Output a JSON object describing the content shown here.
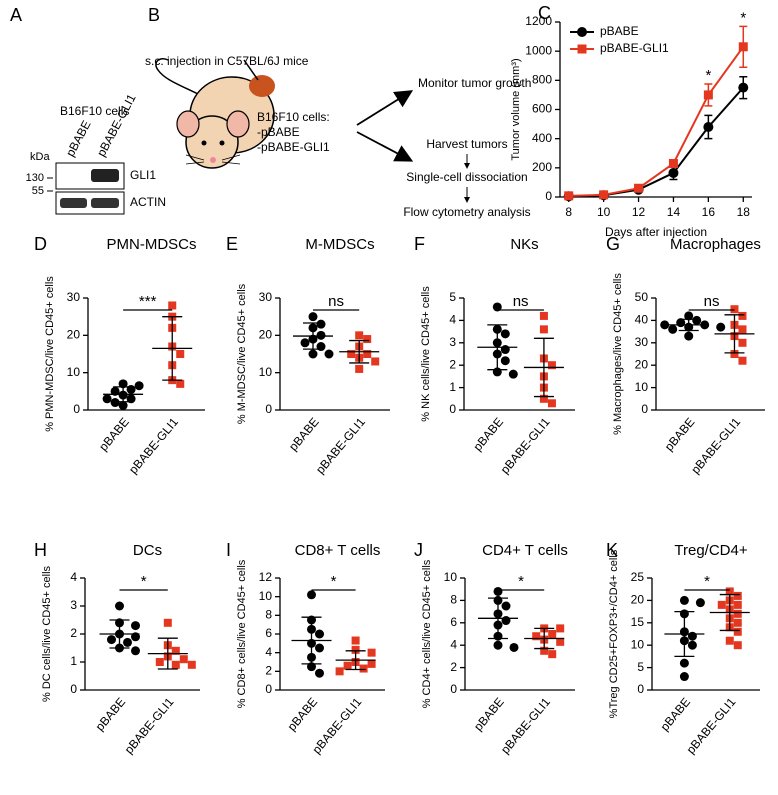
{
  "panel_a": {
    "letter": "A",
    "title": "B16F10 cells",
    "lanes": [
      "pBABE",
      "pBABE-GLI1"
    ],
    "unit": "kDa",
    "markers": [
      "130",
      "55"
    ],
    "bands": [
      "GLI1",
      "ACTIN"
    ]
  },
  "panel_b": {
    "letter": "B",
    "title": "s.c. injection in C57BL/6J mice",
    "cells": "B16F10 cells:",
    "lines": [
      "-pBABE",
      "-pBABE-GLI1"
    ],
    "steps": [
      "Monitor tumor growth",
      "Harvest tumors",
      "Single-cell dissociation",
      "Flow cytometry analysis"
    ]
  },
  "chart_data": [
    {
      "type": "line",
      "panel": "C",
      "xlabel": "Days after injection",
      "ylabel": "Tumor volume (mm³)",
      "x": [
        8,
        10,
        12,
        14,
        16,
        18
      ],
      "xlim": [
        7.5,
        18.5
      ],
      "xticks": [
        8,
        10,
        12,
        14,
        16,
        18
      ],
      "ylim": [
        0,
        1200
      ],
      "yticks": [
        0,
        200,
        400,
        600,
        800,
        1000,
        1200
      ],
      "legend": "upper left",
      "series": [
        {
          "name": "pBABE",
          "color": "#000000",
          "marker": "circle",
          "values": [
            5,
            12,
            50,
            165,
            480,
            750
          ],
          "errors": [
            5,
            5,
            10,
            45,
            80,
            75
          ]
        },
        {
          "name": "pBABE-GLI1",
          "color": "#e4371f",
          "marker": "square",
          "values": [
            8,
            15,
            60,
            230,
            700,
            1030
          ],
          "errors": [
            5,
            5,
            12,
            25,
            75,
            140
          ]
        }
      ],
      "annotations": [
        {
          "x": 16,
          "text": "*"
        },
        {
          "x": 18,
          "text": "*"
        }
      ]
    },
    {
      "type": "dot",
      "panel": "D",
      "title": "PMN-MDSCs",
      "ylabel": "% PMN-MDSC/live CD45+ cells",
      "ylim": [
        0,
        30
      ],
      "yticks": [
        0,
        10,
        20,
        30
      ],
      "significance": "***",
      "groups": [
        {
          "name": "pBABE",
          "color": "#000000",
          "marker": "circle",
          "values": [
            7,
            6.5,
            5.5,
            5,
            4,
            3,
            3,
            2,
            1.2
          ],
          "mean": 4.2,
          "sd": 2.0
        },
        {
          "name": "pBABE-GLI1",
          "color": "#e4371f",
          "marker": "square",
          "values": [
            28,
            25,
            22,
            17,
            15,
            12,
            8,
            7
          ],
          "mean": 16.5,
          "sd": 8.5
        }
      ]
    },
    {
      "type": "dot",
      "panel": "E",
      "title": "M-MDSCs",
      "ylabel": "% M-MDSC/live CD45+ cells",
      "ylim": [
        0,
        30
      ],
      "yticks": [
        0,
        10,
        20,
        30
      ],
      "significance": "ns",
      "groups": [
        {
          "name": "pBABE",
          "color": "#000000",
          "marker": "circle",
          "values": [
            25,
            23,
            22,
            20,
            19,
            18,
            17,
            15,
            15
          ],
          "mean": 19.8,
          "sd": 3.5
        },
        {
          "name": "pBABE-GLI1",
          "color": "#e4371f",
          "marker": "square",
          "values": [
            20,
            19,
            17,
            15,
            15,
            14,
            13,
            11
          ],
          "mean": 15.6,
          "sd": 3.0
        }
      ]
    },
    {
      "type": "dot",
      "panel": "F",
      "title": "NKs",
      "ylabel": "% NK cells/live CD45+ cells",
      "ylim": [
        0,
        5
      ],
      "yticks": [
        0,
        1,
        2,
        3,
        4,
        5
      ],
      "significance": "ns",
      "groups": [
        {
          "name": "pBABE",
          "color": "#000000",
          "marker": "circle",
          "values": [
            4.6,
            3.6,
            3.4,
            3.0,
            2.7,
            2.5,
            2.2,
            1.7,
            1.6
          ],
          "mean": 2.8,
          "sd": 1.0
        },
        {
          "name": "pBABE-GLI1",
          "color": "#e4371f",
          "marker": "square",
          "values": [
            4.2,
            3.6,
            2.3,
            2.0,
            1.5,
            1.0,
            0.5,
            0.3
          ],
          "mean": 1.9,
          "sd": 1.3
        }
      ]
    },
    {
      "type": "dot",
      "panel": "G",
      "title": "Macrophages",
      "ylabel": "% Macrophages/live CD45+ cells",
      "ylim": [
        0,
        50
      ],
      "yticks": [
        0,
        10,
        20,
        30,
        40,
        50
      ],
      "significance": "ns",
      "groups": [
        {
          "name": "pBABE",
          "color": "#000000",
          "marker": "circle",
          "values": [
            42,
            40,
            39,
            38,
            38,
            37,
            37,
            36,
            33
          ],
          "mean": 38,
          "sd": 2.5
        },
        {
          "name": "pBABE-GLI1",
          "color": "#e4371f",
          "marker": "square",
          "values": [
            45,
            42,
            38,
            36,
            33,
            30,
            25,
            22
          ],
          "mean": 34,
          "sd": 8.5
        }
      ]
    },
    {
      "type": "dot",
      "panel": "H",
      "title": "DCs",
      "ylabel": "% DC cells/live CD45+ cells",
      "ylim": [
        0,
        4
      ],
      "yticks": [
        0,
        1,
        2,
        3,
        4
      ],
      "significance": "*",
      "groups": [
        {
          "name": "pBABE",
          "color": "#000000",
          "marker": "circle",
          "values": [
            3.0,
            2.4,
            2.3,
            2.0,
            1.9,
            1.8,
            1.7,
            1.5,
            1.4
          ],
          "mean": 2.0,
          "sd": 0.5
        },
        {
          "name": "pBABE-GLI1",
          "color": "#e4371f",
          "marker": "square",
          "values": [
            2.4,
            1.6,
            1.4,
            1.2,
            1.1,
            1.0,
            0.9,
            0.9
          ],
          "mean": 1.3,
          "sd": 0.55
        }
      ]
    },
    {
      "type": "dot",
      "panel": "I",
      "title": "CD8+ T cells",
      "ylabel": "% CD8+ cells/live CD45+ cells",
      "ylim": [
        0,
        12
      ],
      "yticks": [
        0,
        2,
        4,
        6,
        8,
        10,
        12
      ],
      "significance": "*",
      "groups": [
        {
          "name": "pBABE",
          "color": "#000000",
          "marker": "circle",
          "values": [
            10.2,
            7.5,
            6.5,
            6.0,
            5.0,
            4.5,
            3.5,
            2.5,
            1.8
          ],
          "mean": 5.3,
          "sd": 2.5
        },
        {
          "name": "pBABE-GLI1",
          "color": "#e4371f",
          "marker": "square",
          "values": [
            5.3,
            4.3,
            4.0,
            3.0,
            2.8,
            2.6,
            2.3,
            2.0
          ],
          "mean": 3.2,
          "sd": 1.0
        }
      ]
    },
    {
      "type": "dot",
      "panel": "J",
      "title": "CD4+ T cells",
      "ylabel": "% CD4+ cells/live CD45+ cells",
      "ylim": [
        0,
        10
      ],
      "yticks": [
        0,
        2,
        4,
        6,
        8,
        10
      ],
      "significance": "*",
      "groups": [
        {
          "name": "pBABE",
          "color": "#000000",
          "marker": "circle",
          "values": [
            8.8,
            8.0,
            7.5,
            6.8,
            6.2,
            5.8,
            4.8,
            4.0,
            3.8
          ],
          "mean": 6.4,
          "sd": 1.8
        },
        {
          "name": "pBABE-GLI1",
          "color": "#e4371f",
          "marker": "square",
          "values": [
            5.5,
            5.5,
            5.0,
            4.8,
            4.5,
            4.3,
            3.5,
            3.2
          ],
          "mean": 4.6,
          "sd": 0.9
        }
      ]
    },
    {
      "type": "dot",
      "panel": "K",
      "title": "Treg/CD4+",
      "ylabel": "%Treg CD25+FOXP3+/CD4+ cells",
      "ylim": [
        0,
        25
      ],
      "yticks": [
        0,
        5,
        10,
        15,
        20,
        25
      ],
      "significance": "*",
      "groups": [
        {
          "name": "pBABE",
          "color": "#000000",
          "marker": "circle",
          "values": [
            20,
            19.5,
            17,
            13,
            12,
            11,
            10,
            6,
            3
          ],
          "mean": 12.5,
          "sd": 5.0
        },
        {
          "name": "pBABE-GLI1",
          "color": "#e4371f",
          "marker": "square",
          "values": [
            22,
            21,
            20,
            19,
            19,
            18,
            17,
            16,
            15,
            14,
            13,
            11,
            10
          ],
          "mean": 17.3,
          "sd": 4.0
        }
      ]
    }
  ]
}
